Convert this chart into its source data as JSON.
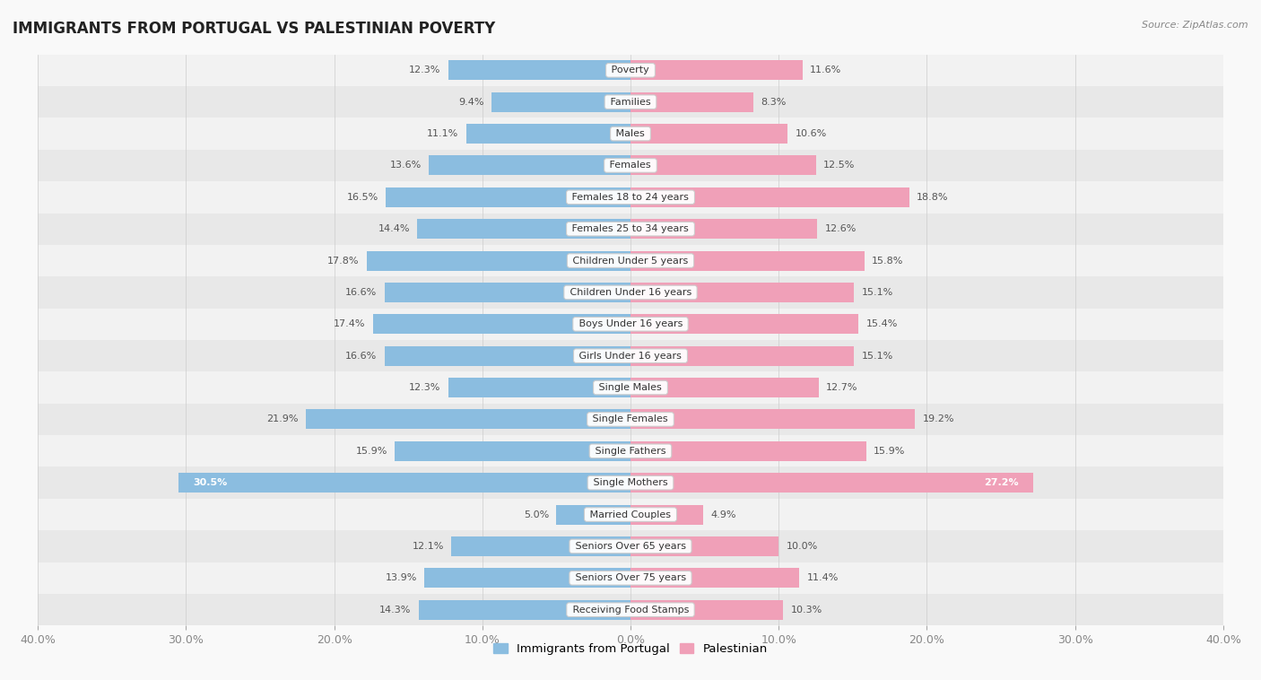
{
  "title": "IMMIGRANTS FROM PORTUGAL VS PALESTINIAN POVERTY",
  "source": "Source: ZipAtlas.com",
  "categories": [
    "Poverty",
    "Families",
    "Males",
    "Females",
    "Females 18 to 24 years",
    "Females 25 to 34 years",
    "Children Under 5 years",
    "Children Under 16 years",
    "Boys Under 16 years",
    "Girls Under 16 years",
    "Single Males",
    "Single Females",
    "Single Fathers",
    "Single Mothers",
    "Married Couples",
    "Seniors Over 65 years",
    "Seniors Over 75 years",
    "Receiving Food Stamps"
  ],
  "portugal_values": [
    12.3,
    9.4,
    11.1,
    13.6,
    16.5,
    14.4,
    17.8,
    16.6,
    17.4,
    16.6,
    12.3,
    21.9,
    15.9,
    30.5,
    5.0,
    12.1,
    13.9,
    14.3
  ],
  "palestinian_values": [
    11.6,
    8.3,
    10.6,
    12.5,
    18.8,
    12.6,
    15.8,
    15.1,
    15.4,
    15.1,
    12.7,
    19.2,
    15.9,
    27.2,
    4.9,
    10.0,
    11.4,
    10.3
  ],
  "portugal_color": "#8bbde0",
  "palestinian_color": "#f0a0b8",
  "row_colors": [
    "#f2f2f2",
    "#e8e8e8"
  ],
  "xlim": 40.0,
  "bar_height": 0.62,
  "legend_labels": [
    "Immigrants from Portugal",
    "Palestinian"
  ],
  "tick_color": "#888888",
  "label_color": "#555555",
  "title_color": "#222222",
  "source_color": "#888888"
}
